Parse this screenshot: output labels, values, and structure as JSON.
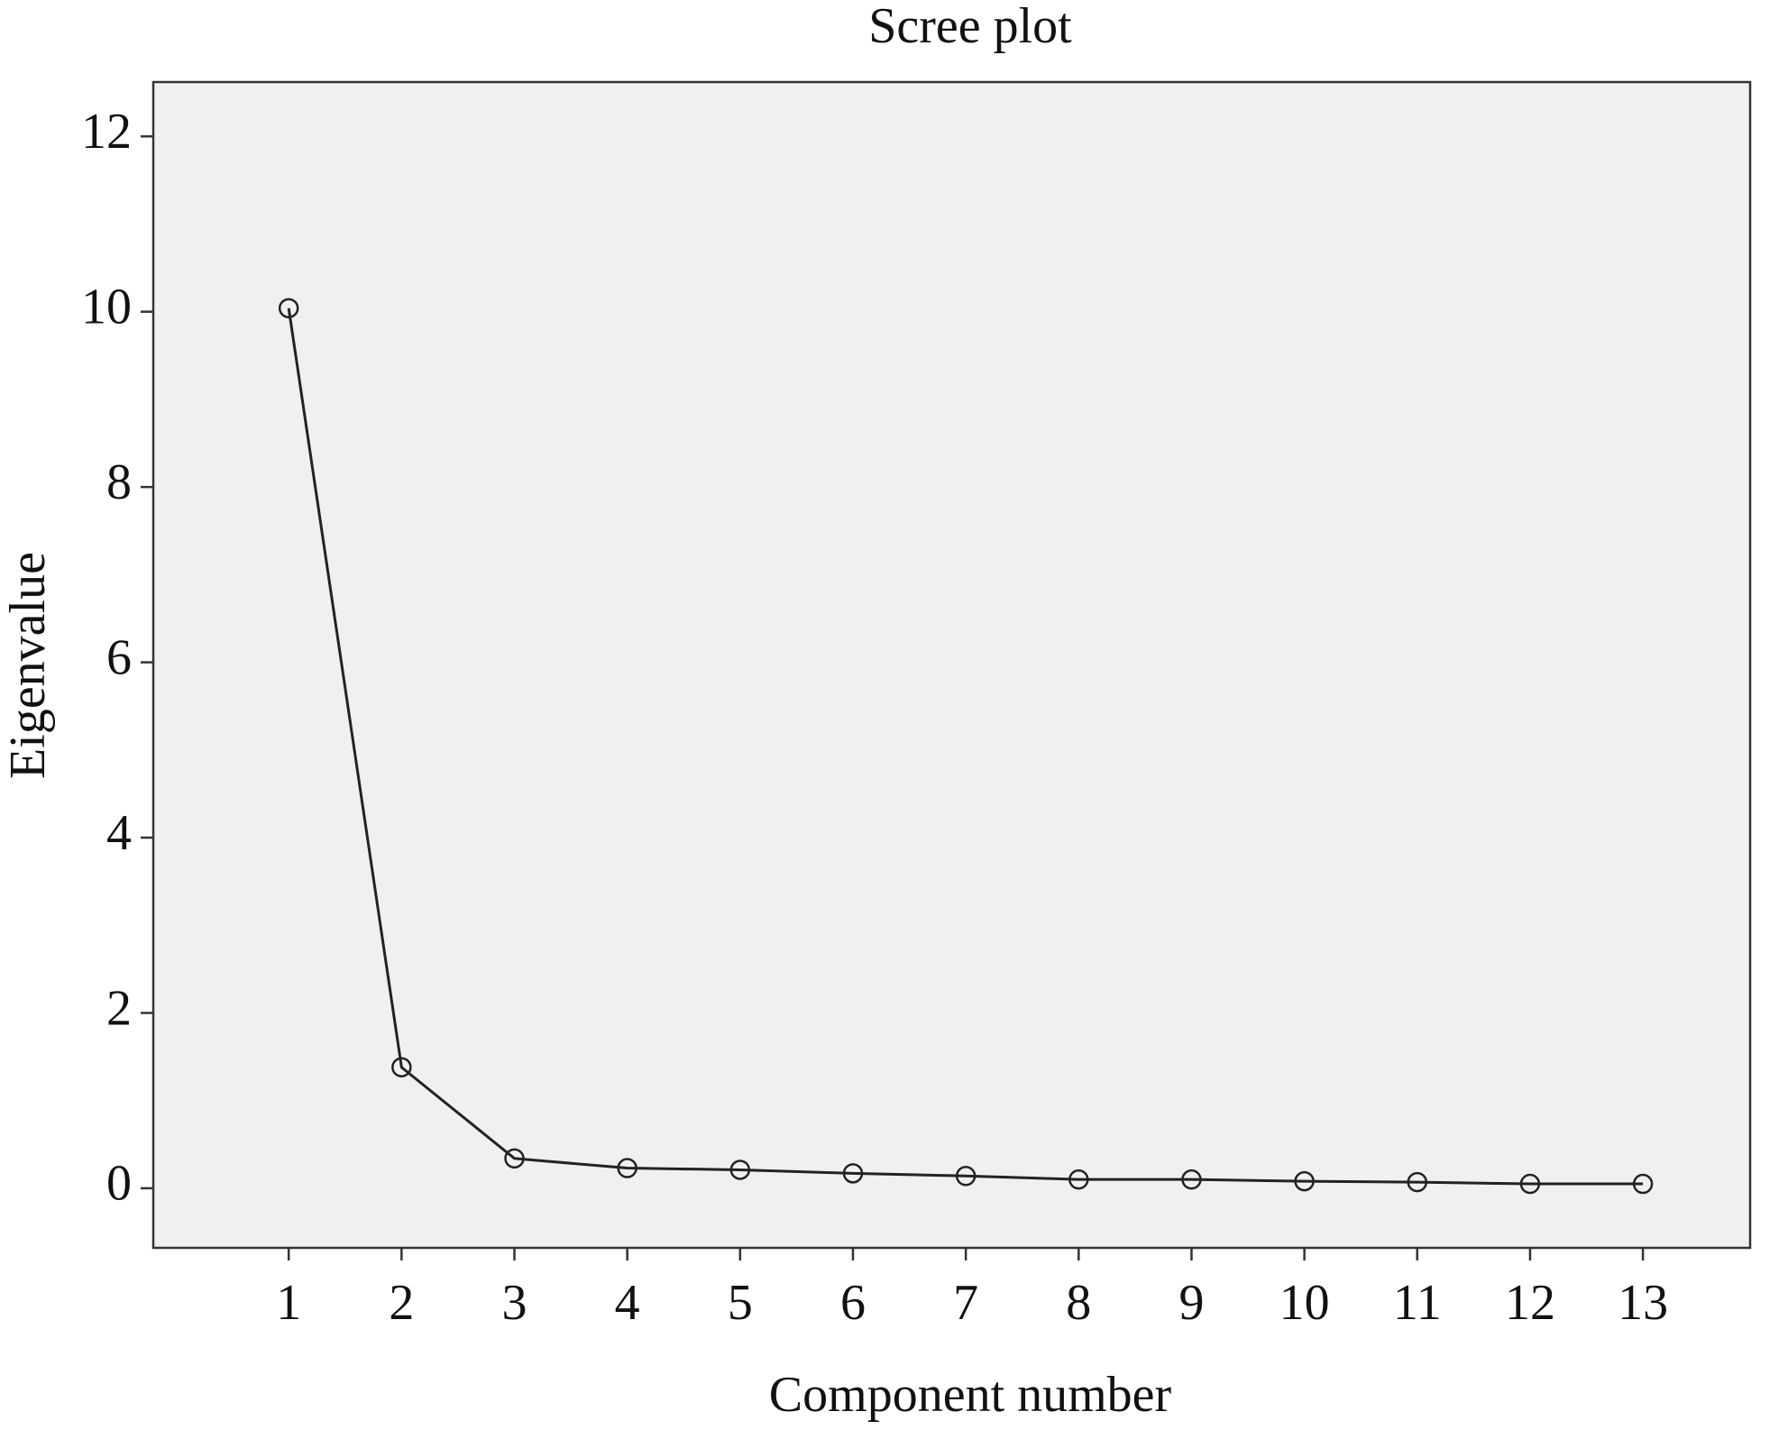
{
  "chart_data": {
    "type": "line",
    "title": "Scree plot",
    "x_label": "Component number",
    "y_label": "Eigenvalue",
    "x": [
      1,
      2,
      3,
      4,
      5,
      6,
      7,
      8,
      9,
      10,
      11,
      12,
      13
    ],
    "values": [
      10.04,
      1.38,
      0.34,
      0.23,
      0.21,
      0.17,
      0.14,
      0.1,
      0.1,
      0.08,
      0.07,
      0.05,
      0.05
    ],
    "color": "#222222",
    "marker": "open-circle",
    "background": "#f0f0f0",
    "xlim": [
      -0.2,
      13.95
    ],
    "xticks": [
      1,
      2,
      3,
      4,
      5,
      6,
      7,
      8,
      9,
      10,
      11,
      12,
      13
    ],
    "ylim": [
      -0.68,
      12.62
    ],
    "yticks": [
      0,
      2,
      4,
      6,
      8,
      10,
      12
    ],
    "grid": false
  }
}
